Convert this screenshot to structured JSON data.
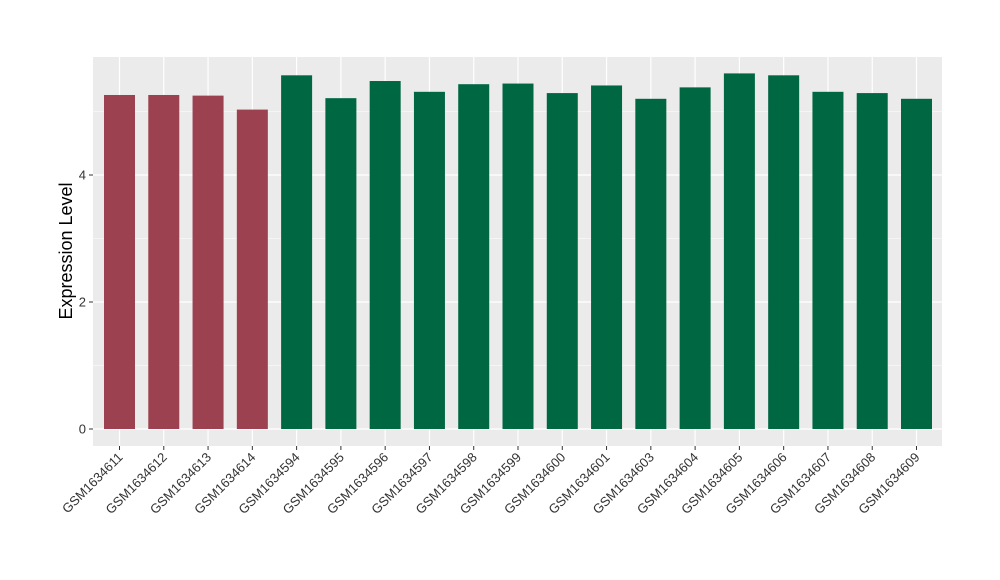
{
  "chart_data": {
    "type": "bar",
    "title": "",
    "xlabel": "",
    "ylabel": "Expression Level",
    "ylim": [
      0,
      5.88
    ],
    "yticks": [
      0,
      2,
      4
    ],
    "grid": true,
    "legend": "none",
    "categories": [
      "GSM1634611",
      "GSM1634612",
      "GSM1634613",
      "GSM1634614",
      "GSM1634594",
      "GSM1634595",
      "GSM1634596",
      "GSM1634597",
      "GSM1634598",
      "GSM1634599",
      "GSM1634600",
      "GSM1634601",
      "GSM1634603",
      "GSM1634604",
      "GSM1634605",
      "GSM1634606",
      "GSM1634607",
      "GSM1634608",
      "GSM1634609"
    ],
    "values": [
      5.26,
      5.26,
      5.25,
      5.03,
      5.57,
      5.21,
      5.48,
      5.31,
      5.43,
      5.44,
      5.29,
      5.41,
      5.2,
      5.38,
      5.6,
      5.57,
      5.31,
      5.29,
      5.2
    ],
    "groups": [
      0,
      0,
      0,
      0,
      1,
      1,
      1,
      1,
      1,
      1,
      1,
      1,
      1,
      1,
      1,
      1,
      1,
      1,
      1
    ],
    "colors": {
      "group0": "#9B414F",
      "group1": "#006743",
      "panel": "#EBEBEB",
      "grid": "#FFFFFF"
    }
  }
}
